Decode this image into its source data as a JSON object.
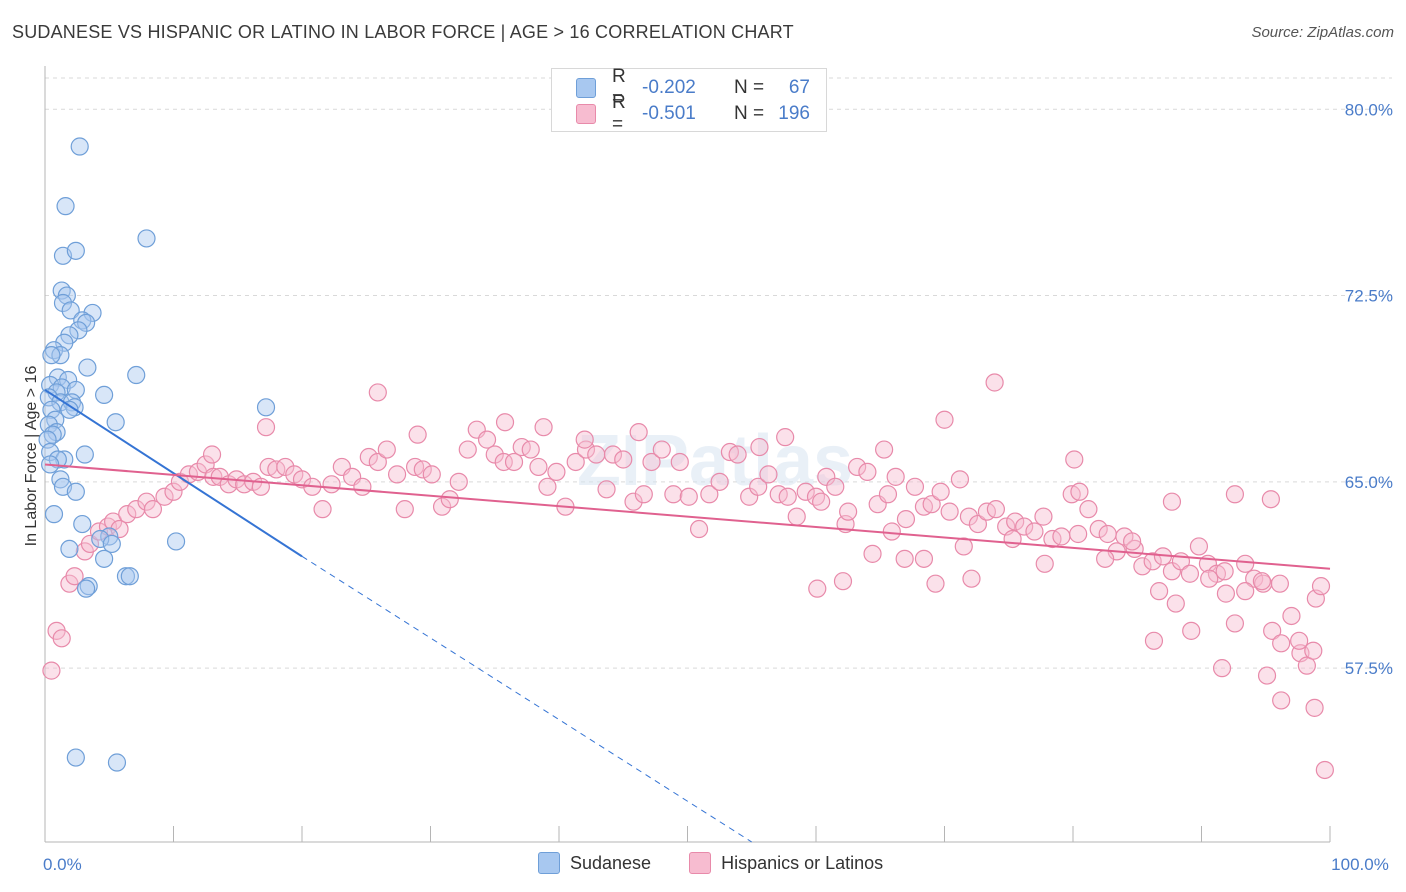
{
  "title": "SUDANESE VS HISPANIC OR LATINO IN LABOR FORCE | AGE > 16 CORRELATION CHART",
  "source": "Source: ZipAtlas.com",
  "watermark": "ZIPatlas",
  "legend": {
    "rows": [
      {
        "r_label": "R =",
        "r_value": "-0.202",
        "n_label": "N =",
        "n_value": "67",
        "color": "#a8c8f0",
        "border": "#6f9fd8"
      },
      {
        "r_label": "R =",
        "r_value": "-0.501",
        "n_label": "N =",
        "n_value": "196",
        "color": "#f7bcd0",
        "border": "#e88aaa"
      }
    ]
  },
  "bottom_legend": [
    {
      "label": "Sudanese",
      "color": "#a8c8f0",
      "border": "#6f9fd8"
    },
    {
      "label": "Hispanics or Latinos",
      "color": "#f7bcd0",
      "border": "#e88aaa"
    }
  ],
  "chart_data": {
    "type": "scatter",
    "ylabel": "In Labor Force | Age > 16",
    "xlabel": "",
    "xlim": [
      0,
      100
    ],
    "ylim": [
      50.5,
      81.5
    ],
    "x_ticks": [
      {
        "value": 0,
        "label": "0.0%"
      },
      {
        "value": 100,
        "label": "100.0%"
      }
    ],
    "y_ticks": [
      {
        "value": 57.5,
        "label": "57.5%"
      },
      {
        "value": 65.0,
        "label": "65.0%"
      },
      {
        "value": 72.5,
        "label": "72.5%"
      },
      {
        "value": 80.0,
        "label": "80.0%"
      }
    ],
    "series": [
      {
        "name": "Sudanese",
        "color": "#a8c8f0",
        "stroke": "#6f9fd8",
        "trend": {
          "x0": 0,
          "y0": 68.7,
          "x1": 20,
          "y1": 62.0,
          "dash_to_x": 55,
          "dash_to_y": 50.5,
          "color": "#3574d4"
        },
        "points": [
          [
            2.7,
            78.5
          ],
          [
            1.6,
            76.1
          ],
          [
            7.9,
            74.8
          ],
          [
            1.4,
            74.1
          ],
          [
            2.4,
            74.3
          ],
          [
            1.3,
            72.7
          ],
          [
            1.7,
            72.5
          ],
          [
            1.4,
            72.2
          ],
          [
            2.0,
            71.9
          ],
          [
            3.7,
            71.8
          ],
          [
            2.9,
            71.5
          ],
          [
            3.2,
            71.4
          ],
          [
            2.6,
            71.1
          ],
          [
            1.9,
            70.9
          ],
          [
            1.5,
            70.6
          ],
          [
            0.7,
            70.3
          ],
          [
            1.2,
            70.1
          ],
          [
            0.5,
            70.1
          ],
          [
            3.3,
            69.6
          ],
          [
            7.1,
            69.3
          ],
          [
            1.0,
            69.2
          ],
          [
            1.8,
            69.1
          ],
          [
            0.4,
            68.9
          ],
          [
            1.3,
            68.8
          ],
          [
            2.4,
            68.7
          ],
          [
            0.9,
            68.6
          ],
          [
            4.6,
            68.5
          ],
          [
            0.3,
            68.4
          ],
          [
            1.2,
            68.2
          ],
          [
            2.1,
            68.2
          ],
          [
            2.3,
            68.0
          ],
          [
            1.9,
            67.9
          ],
          [
            0.5,
            67.9
          ],
          [
            17.2,
            68.0
          ],
          [
            5.5,
            67.4
          ],
          [
            0.8,
            67.5
          ],
          [
            0.3,
            67.3
          ],
          [
            0.9,
            67.0
          ],
          [
            0.6,
            66.9
          ],
          [
            0.2,
            66.7
          ],
          [
            0.4,
            66.2
          ],
          [
            3.1,
            66.1
          ],
          [
            1.5,
            65.9
          ],
          [
            1.0,
            65.9
          ],
          [
            0.4,
            65.7
          ],
          [
            1.2,
            65.1
          ],
          [
            1.4,
            64.8
          ],
          [
            2.4,
            64.6
          ],
          [
            0.7,
            63.7
          ],
          [
            2.9,
            63.3
          ],
          [
            5.0,
            62.8
          ],
          [
            4.3,
            62.7
          ],
          [
            5.2,
            62.5
          ],
          [
            10.2,
            62.6
          ],
          [
            1.9,
            62.3
          ],
          [
            4.6,
            61.9
          ],
          [
            6.3,
            61.2
          ],
          [
            6.6,
            61.2
          ],
          [
            3.4,
            60.8
          ],
          [
            3.2,
            60.7
          ],
          [
            2.4,
            53.9
          ],
          [
            5.6,
            53.7
          ]
        ]
      },
      {
        "name": "Hispanics or Latinos",
        "color": "#f7bcd0",
        "stroke": "#e88aaa",
        "trend": {
          "x0": 0,
          "y0": 65.7,
          "x1": 100,
          "y1": 61.5,
          "color": "#e0618f"
        },
        "points": [
          [
            0.5,
            57.4
          ],
          [
            0.9,
            59.0
          ],
          [
            1.3,
            58.7
          ],
          [
            1.9,
            60.9
          ],
          [
            2.3,
            61.2
          ],
          [
            3.1,
            62.2
          ],
          [
            3.5,
            62.5
          ],
          [
            4.2,
            63.0
          ],
          [
            4.9,
            63.2
          ],
          [
            5.3,
            63.4
          ],
          [
            5.8,
            63.1
          ],
          [
            6.4,
            63.7
          ],
          [
            7.1,
            63.9
          ],
          [
            7.9,
            64.2
          ],
          [
            8.4,
            63.9
          ],
          [
            9.3,
            64.4
          ],
          [
            10.0,
            64.6
          ],
          [
            10.5,
            65.0
          ],
          [
            11.2,
            65.3
          ],
          [
            11.9,
            65.4
          ],
          [
            12.5,
            65.7
          ],
          [
            13.1,
            65.2
          ],
          [
            13.6,
            65.2
          ],
          [
            14.3,
            64.9
          ],
          [
            14.9,
            65.1
          ],
          [
            15.5,
            64.9
          ],
          [
            16.2,
            65.0
          ],
          [
            16.8,
            64.8
          ],
          [
            17.4,
            65.6
          ],
          [
            18.0,
            65.5
          ],
          [
            18.7,
            65.6
          ],
          [
            19.4,
            65.3
          ],
          [
            20.0,
            65.1
          ],
          [
            20.8,
            64.8
          ],
          [
            21.6,
            63.9
          ],
          [
            22.3,
            64.9
          ],
          [
            23.1,
            65.6
          ],
          [
            23.9,
            65.2
          ],
          [
            24.7,
            64.8
          ],
          [
            25.2,
            66.0
          ],
          [
            25.9,
            65.8
          ],
          [
            26.6,
            66.3
          ],
          [
            27.4,
            65.3
          ],
          [
            28.0,
            63.9
          ],
          [
            28.8,
            65.6
          ],
          [
            29.4,
            65.5
          ],
          [
            30.1,
            65.3
          ],
          [
            30.9,
            64.0
          ],
          [
            31.5,
            64.3
          ],
          [
            32.2,
            65.0
          ],
          [
            32.9,
            66.3
          ],
          [
            33.6,
            67.1
          ],
          [
            34.4,
            66.7
          ],
          [
            35.0,
            66.1
          ],
          [
            35.7,
            65.8
          ],
          [
            36.5,
            65.8
          ],
          [
            37.1,
            66.4
          ],
          [
            37.8,
            66.3
          ],
          [
            38.4,
            65.6
          ],
          [
            39.1,
            64.8
          ],
          [
            39.8,
            65.4
          ],
          [
            40.5,
            64.0
          ],
          [
            41.3,
            65.8
          ],
          [
            42.1,
            66.3
          ],
          [
            42.9,
            66.1
          ],
          [
            43.7,
            64.7
          ],
          [
            44.2,
            66.1
          ],
          [
            45.0,
            65.9
          ],
          [
            45.8,
            64.2
          ],
          [
            46.6,
            64.5
          ],
          [
            47.2,
            65.8
          ],
          [
            48.0,
            66.3
          ],
          [
            48.9,
            64.5
          ],
          [
            49.4,
            65.8
          ],
          [
            50.1,
            64.4
          ],
          [
            50.9,
            63.1
          ],
          [
            51.7,
            64.5
          ],
          [
            52.5,
            65.0
          ],
          [
            53.3,
            66.2
          ],
          [
            53.9,
            66.1
          ],
          [
            54.8,
            64.4
          ],
          [
            55.5,
            64.8
          ],
          [
            56.3,
            65.3
          ],
          [
            57.1,
            64.5
          ],
          [
            57.8,
            64.4
          ],
          [
            58.5,
            63.6
          ],
          [
            59.2,
            64.6
          ],
          [
            60.0,
            64.4
          ],
          [
            60.8,
            65.2
          ],
          [
            61.5,
            64.8
          ],
          [
            62.3,
            63.3
          ],
          [
            63.2,
            65.6
          ],
          [
            64.0,
            65.4
          ],
          [
            64.8,
            64.1
          ],
          [
            65.6,
            64.5
          ],
          [
            66.2,
            65.2
          ],
          [
            67.0,
            63.5
          ],
          [
            67.7,
            64.8
          ],
          [
            68.4,
            64.0
          ],
          [
            69.0,
            64.1
          ],
          [
            69.7,
            64.6
          ],
          [
            70.4,
            63.8
          ],
          [
            71.2,
            65.1
          ],
          [
            71.9,
            63.6
          ],
          [
            72.6,
            63.3
          ],
          [
            73.3,
            63.8
          ],
          [
            74.0,
            63.9
          ],
          [
            74.8,
            63.2
          ],
          [
            75.5,
            63.4
          ],
          [
            76.2,
            63.2
          ],
          [
            77.0,
            63.0
          ],
          [
            77.7,
            63.6
          ],
          [
            78.4,
            62.7
          ],
          [
            79.1,
            62.8
          ],
          [
            79.9,
            64.5
          ],
          [
            80.5,
            64.6
          ],
          [
            81.2,
            63.9
          ],
          [
            82.0,
            63.1
          ],
          [
            82.7,
            62.9
          ],
          [
            83.4,
            62.2
          ],
          [
            84.0,
            62.8
          ],
          [
            84.8,
            62.3
          ],
          [
            85.4,
            61.6
          ],
          [
            86.2,
            61.8
          ],
          [
            87.0,
            62.0
          ],
          [
            87.7,
            61.4
          ],
          [
            88.4,
            61.8
          ],
          [
            89.1,
            61.3
          ],
          [
            89.8,
            62.4
          ],
          [
            90.5,
            61.7
          ],
          [
            91.2,
            61.3
          ],
          [
            91.9,
            60.5
          ],
          [
            92.6,
            59.3
          ],
          [
            93.4,
            61.7
          ],
          [
            94.1,
            61.1
          ],
          [
            94.8,
            60.9
          ],
          [
            95.5,
            59.0
          ],
          [
            96.2,
            58.5
          ],
          [
            97.0,
            59.6
          ],
          [
            97.7,
            58.1
          ],
          [
            98.2,
            57.6
          ],
          [
            98.9,
            60.3
          ],
          [
            99.3,
            60.8
          ],
          [
            13.0,
            66.1
          ],
          [
            17.2,
            67.2
          ],
          [
            25.9,
            68.6
          ],
          [
            29.0,
            66.9
          ],
          [
            35.8,
            67.4
          ],
          [
            38.8,
            67.2
          ],
          [
            42.0,
            66.7
          ],
          [
            46.2,
            67.0
          ],
          [
            55.6,
            66.4
          ],
          [
            57.6,
            66.8
          ],
          [
            65.3,
            66.3
          ],
          [
            70.0,
            67.5
          ],
          [
            73.9,
            69.0
          ],
          [
            80.1,
            65.9
          ],
          [
            87.7,
            64.2
          ],
          [
            92.6,
            64.5
          ],
          [
            95.4,
            64.3
          ],
          [
            60.4,
            64.2
          ],
          [
            62.5,
            63.8
          ],
          [
            65.9,
            63.0
          ],
          [
            68.4,
            61.9
          ],
          [
            71.5,
            62.4
          ],
          [
            75.3,
            62.7
          ],
          [
            77.8,
            61.7
          ],
          [
            80.4,
            62.9
          ],
          [
            82.5,
            61.9
          ],
          [
            84.6,
            62.6
          ],
          [
            86.7,
            60.6
          ],
          [
            88.0,
            60.1
          ],
          [
            89.2,
            59.0
          ],
          [
            90.6,
            61.1
          ],
          [
            91.8,
            61.4
          ],
          [
            93.4,
            60.6
          ],
          [
            94.7,
            61.0
          ],
          [
            96.1,
            60.9
          ],
          [
            97.6,
            58.6
          ],
          [
            98.7,
            58.2
          ],
          [
            86.3,
            58.6
          ],
          [
            91.6,
            57.5
          ],
          [
            95.1,
            57.2
          ],
          [
            96.2,
            56.2
          ],
          [
            98.8,
            55.9
          ],
          [
            99.6,
            53.4
          ],
          [
            60.1,
            60.7
          ],
          [
            62.1,
            61.0
          ],
          [
            64.4,
            62.1
          ],
          [
            66.9,
            61.9
          ],
          [
            69.3,
            60.9
          ],
          [
            72.1,
            61.1
          ]
        ]
      }
    ]
  }
}
